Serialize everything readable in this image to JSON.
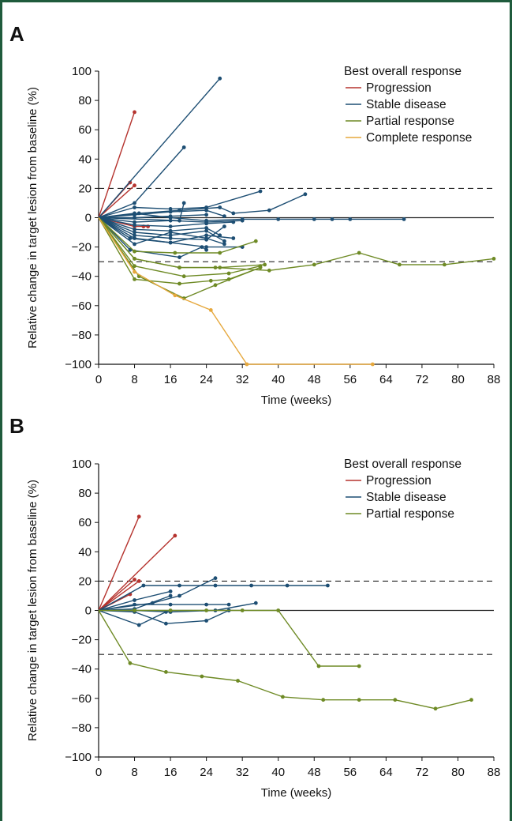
{
  "chart_data": [
    {
      "panel": "A",
      "type": "line",
      "xlabel": "Time (weeks)",
      "ylabel": "Relative change in target lesion from baseline (%)",
      "xlim": [
        0,
        88
      ],
      "ylim": [
        -100,
        100
      ],
      "xticks": [
        "0",
        "8",
        "16",
        "24",
        "32",
        "40",
        "48",
        "56",
        "64",
        "72",
        "80",
        "88"
      ],
      "yticks": [
        "100",
        "80",
        "60",
        "40",
        "20",
        "0",
        "−20",
        "−40",
        "−60",
        "−80",
        "−100"
      ],
      "reference_lines": [
        20,
        0,
        -30
      ],
      "legend": {
        "title": "Best overall response",
        "position": "top-right",
        "items": [
          {
            "label": "Progression",
            "color": "#b5332e"
          },
          {
            "label": "Stable disease",
            "color": "#1d4e73"
          },
          {
            "label": "Partial response",
            "color": "#6e8a25"
          },
          {
            "label": "Complete response",
            "color": "#e6a83d"
          }
        ]
      },
      "series": [
        {
          "group": "Progression",
          "points": [
            [
              0,
              0
            ],
            [
              8,
              72
            ]
          ]
        },
        {
          "group": "Progression",
          "points": [
            [
              0,
              0
            ],
            [
              7,
              24
            ]
          ]
        },
        {
          "group": "Progression",
          "points": [
            [
              0,
              0
            ],
            [
              8,
              22
            ]
          ]
        },
        {
          "group": "Progression",
          "points": [
            [
              0,
              0
            ],
            [
              8,
              -6
            ],
            [
              10,
              -6
            ],
            [
              11,
              -6
            ]
          ]
        },
        {
          "group": "Stable disease",
          "points": [
            [
              0,
              0
            ],
            [
              27,
              95
            ]
          ]
        },
        {
          "group": "Stable disease",
          "points": [
            [
              0,
              0
            ],
            [
              8,
              10
            ],
            [
              19,
              48
            ]
          ]
        },
        {
          "group": "Stable disease",
          "points": [
            [
              0,
              0
            ],
            [
              18,
              -2
            ],
            [
              19,
              10
            ]
          ]
        },
        {
          "group": "Stable disease",
          "points": [
            [
              0,
              0
            ],
            [
              8,
              3
            ],
            [
              16,
              0
            ],
            [
              24,
              -2
            ],
            [
              32,
              -1
            ],
            [
              40,
              -1
            ],
            [
              48,
              -1
            ],
            [
              52,
              -1
            ],
            [
              56,
              -1
            ],
            [
              68,
              -1
            ]
          ]
        },
        {
          "group": "Stable disease",
          "points": [
            [
              0,
              0
            ],
            [
              9,
              3
            ],
            [
              18,
              5
            ],
            [
              27,
              7
            ],
            [
              30,
              3
            ],
            [
              38,
              5
            ],
            [
              46,
              16
            ]
          ]
        },
        {
          "group": "Stable disease",
          "points": [
            [
              0,
              0
            ],
            [
              8,
              7
            ],
            [
              16,
              6
            ],
            [
              24,
              7
            ],
            [
              36,
              18
            ]
          ]
        },
        {
          "group": "Stable disease",
          "points": [
            [
              0,
              0
            ],
            [
              8,
              2
            ],
            [
              16,
              4
            ],
            [
              24,
              5
            ],
            [
              28,
              1
            ]
          ]
        },
        {
          "group": "Stable disease",
          "points": [
            [
              0,
              0
            ],
            [
              8,
              0
            ],
            [
              16,
              1
            ],
            [
              24,
              2
            ]
          ]
        },
        {
          "group": "Stable disease",
          "points": [
            [
              0,
              0
            ],
            [
              8,
              -3
            ],
            [
              16,
              -2
            ],
            [
              24,
              -3
            ],
            [
              32,
              -2
            ]
          ]
        },
        {
          "group": "Stable disease",
          "points": [
            [
              0,
              0
            ],
            [
              8,
              -5
            ],
            [
              16,
              -6
            ],
            [
              24,
              -4
            ],
            [
              30,
              -3
            ]
          ]
        },
        {
          "group": "Stable disease",
          "points": [
            [
              0,
              0
            ],
            [
              8,
              -8
            ],
            [
              16,
              -9
            ],
            [
              24,
              -7
            ],
            [
              27,
              -12
            ]
          ]
        },
        {
          "group": "Stable disease",
          "points": [
            [
              0,
              0
            ],
            [
              8,
              -10
            ],
            [
              16,
              -12
            ],
            [
              24,
              -9
            ],
            [
              28,
              -16
            ]
          ]
        },
        {
          "group": "Stable disease",
          "points": [
            [
              0,
              0
            ],
            [
              8,
              -12
            ],
            [
              16,
              -14
            ],
            [
              24,
              -15
            ],
            [
              28,
              -6
            ]
          ]
        },
        {
          "group": "Stable disease",
          "points": [
            [
              0,
              0
            ],
            [
              8,
              -14
            ],
            [
              16,
              -17
            ],
            [
              24,
              -12
            ],
            [
              30,
              -14
            ]
          ]
        },
        {
          "group": "Stable disease",
          "points": [
            [
              0,
              0
            ],
            [
              7,
              -14
            ],
            [
              16,
              -17
            ],
            [
              24,
              -20
            ],
            [
              32,
              -20
            ]
          ]
        },
        {
          "group": "Stable disease",
          "points": [
            [
              0,
              0
            ],
            [
              8,
              -18
            ],
            [
              16,
              -10
            ],
            [
              24,
              -14
            ],
            [
              28,
              -18
            ]
          ]
        },
        {
          "group": "Stable disease",
          "points": [
            [
              0,
              0
            ],
            [
              7,
              -22
            ],
            [
              18,
              -27
            ],
            [
              23,
              -20
            ],
            [
              24,
              -22
            ]
          ]
        },
        {
          "group": "Partial response",
          "points": [
            [
              0,
              0
            ],
            [
              8,
              -23
            ],
            [
              17,
              -24
            ],
            [
              27,
              -24
            ],
            [
              35,
              -16
            ]
          ]
        },
        {
          "group": "Partial response",
          "points": [
            [
              0,
              0
            ],
            [
              8,
              -28
            ],
            [
              18,
              -34
            ],
            [
              27,
              -34
            ],
            [
              37,
              -32
            ]
          ]
        },
        {
          "group": "Partial response",
          "points": [
            [
              0,
              0
            ],
            [
              8,
              -33
            ],
            [
              19,
              -40
            ],
            [
              29,
              -38
            ],
            [
              36,
              -33
            ]
          ]
        },
        {
          "group": "Partial response",
          "points": [
            [
              0,
              0
            ],
            [
              8,
              -42
            ],
            [
              18,
              -45
            ],
            [
              25,
              -43
            ],
            [
              29,
              -42
            ],
            [
              36,
              -34
            ]
          ]
        },
        {
          "group": "Partial response",
          "points": [
            [
              0,
              0
            ],
            [
              9,
              -40
            ],
            [
              19,
              -55
            ],
            [
              26,
              -46
            ],
            [
              36,
              -34
            ]
          ]
        },
        {
          "group": "Partial response",
          "points": [
            [
              0,
              0
            ],
            [
              8,
              -28
            ],
            [
              18,
              -34
            ],
            [
              26,
              -34
            ],
            [
              38,
              -36
            ],
            [
              48,
              -32
            ],
            [
              58,
              -24
            ],
            [
              67,
              -32
            ],
            [
              77,
              -32
            ],
            [
              88,
              -28
            ]
          ]
        },
        {
          "group": "Complete response",
          "points": [
            [
              0,
              0
            ],
            [
              8,
              -37
            ],
            [
              17,
              -53
            ],
            [
              25,
              -63
            ],
            [
              33,
              -100
            ],
            [
              61,
              -100
            ]
          ]
        }
      ]
    },
    {
      "panel": "B",
      "type": "line",
      "xlabel": "Time (weeks)",
      "ylabel": "Relative change in target lesion from baseline (%)",
      "xlim": [
        0,
        88
      ],
      "ylim": [
        -100,
        100
      ],
      "xticks": [
        "0",
        "8",
        "16",
        "24",
        "32",
        "40",
        "48",
        "56",
        "64",
        "72",
        "80",
        "88"
      ],
      "yticks": [
        "100",
        "80",
        "60",
        "40",
        "20",
        "0",
        "−20",
        "−40",
        "−60",
        "−80",
        "−100"
      ],
      "reference_lines": [
        20,
        0,
        -30
      ],
      "legend": {
        "title": "Best overall response",
        "position": "top-right",
        "items": [
          {
            "label": "Progression",
            "color": "#b5332e"
          },
          {
            "label": "Stable disease",
            "color": "#1d4e73"
          },
          {
            "label": "Partial response",
            "color": "#6e8a25"
          }
        ]
      },
      "series": [
        {
          "group": "Progression",
          "points": [
            [
              0,
              0
            ],
            [
              9,
              64
            ]
          ]
        },
        {
          "group": "Progression",
          "points": [
            [
              0,
              0
            ],
            [
              17,
              51
            ]
          ]
        },
        {
          "group": "Progression",
          "points": [
            [
              0,
              0
            ],
            [
              8,
              21
            ]
          ]
        },
        {
          "group": "Progression",
          "points": [
            [
              0,
              0
            ],
            [
              9,
              20
            ]
          ]
        },
        {
          "group": "Progression",
          "points": [
            [
              0,
              0
            ],
            [
              7,
              11
            ]
          ]
        },
        {
          "group": "Stable disease",
          "points": [
            [
              0,
              0
            ],
            [
              10,
              17
            ],
            [
              18,
              17
            ],
            [
              26,
              17
            ],
            [
              34,
              17
            ],
            [
              42,
              17
            ],
            [
              51,
              17
            ]
          ]
        },
        {
          "group": "Stable disease",
          "points": [
            [
              0,
              0
            ],
            [
              12,
              5
            ],
            [
              18,
              10
            ],
            [
              26,
              22
            ]
          ]
        },
        {
          "group": "Stable disease",
          "points": [
            [
              0,
              0
            ],
            [
              8,
              7
            ],
            [
              16,
              13
            ]
          ]
        },
        {
          "group": "Stable disease",
          "points": [
            [
              0,
              0
            ],
            [
              8,
              4
            ],
            [
              16,
              4
            ],
            [
              24,
              4
            ],
            [
              29,
              4
            ]
          ]
        },
        {
          "group": "Stable disease",
          "points": [
            [
              0,
              0
            ],
            [
              8,
              1
            ],
            [
              16,
              10
            ]
          ]
        },
        {
          "group": "Stable disease",
          "points": [
            [
              0,
              0
            ],
            [
              8,
              0
            ],
            [
              16,
              -1
            ],
            [
              26,
              0
            ],
            [
              35,
              5
            ]
          ]
        },
        {
          "group": "Stable disease",
          "points": [
            [
              0,
              0
            ],
            [
              9,
              -10
            ],
            [
              15,
              -1
            ],
            [
              16,
              -1
            ]
          ]
        },
        {
          "group": "Stable disease",
          "points": [
            [
              0,
              0
            ],
            [
              8,
              -1
            ],
            [
              15,
              -9
            ],
            [
              24,
              -7
            ],
            [
              29,
              0
            ]
          ]
        },
        {
          "group": "Partial response",
          "points": [
            [
              0,
              0
            ],
            [
              8,
              0
            ],
            [
              16,
              0
            ],
            [
              24,
              0
            ],
            [
              32,
              0
            ],
            [
              40,
              0
            ],
            [
              49,
              -38
            ],
            [
              58,
              -38
            ]
          ]
        },
        {
          "group": "Partial response",
          "points": [
            [
              0,
              0
            ],
            [
              7,
              -36
            ],
            [
              15,
              -42
            ],
            [
              23,
              -45
            ],
            [
              31,
              -48
            ],
            [
              41,
              -59
            ],
            [
              50,
              -61
            ],
            [
              58,
              -61
            ],
            [
              66,
              -61
            ],
            [
              75,
              -67
            ],
            [
              83,
              -61
            ]
          ]
        }
      ]
    }
  ]
}
